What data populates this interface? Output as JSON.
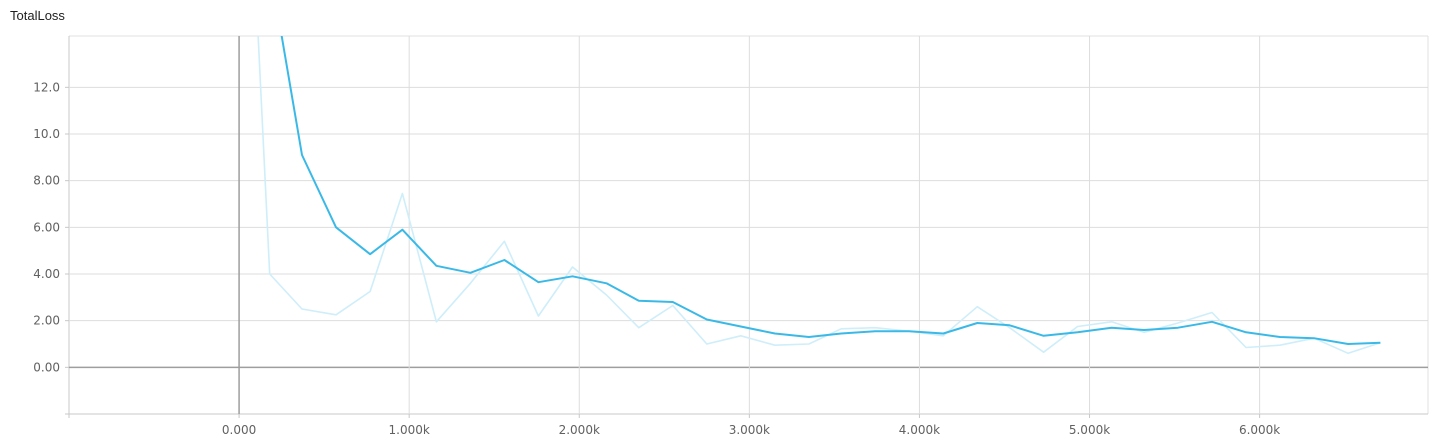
{
  "chart_data": {
    "type": "line",
    "title": "TotalLoss",
    "xlabel": "",
    "ylabel": "",
    "xlim": [
      -1000,
      6990
    ],
    "ylim": [
      -2,
      14.2
    ],
    "x_ticks": [
      0,
      1000,
      2000,
      3000,
      4000,
      5000,
      6000
    ],
    "x_tick_labels": [
      "0.000",
      "1.000k",
      "2.000k",
      "3.000k",
      "4.000k",
      "5.000k",
      "6.000k"
    ],
    "y_ticks": [
      0,
      2,
      4,
      6,
      8,
      10,
      12
    ],
    "y_tick_labels": [
      "0.00",
      "2.00",
      "4.00",
      "6.00",
      "8.00",
      "10.0",
      "12.0"
    ],
    "grid": true,
    "series": [
      {
        "style": "raw",
        "color": "#ceeefa",
        "x": [
          100,
          180,
          370,
          570,
          770,
          960,
          1160,
          1360,
          1560,
          1760,
          1960,
          2160,
          2350,
          2550,
          2750,
          2950,
          3150,
          3350,
          3540,
          3740,
          3940,
          4140,
          4340,
          4530,
          4730,
          4930,
          5130,
          5320,
          5520,
          5720,
          5920,
          6120,
          6320,
          6520,
          6710
        ],
        "y": [
          16,
          4.0,
          2.5,
          2.25,
          3.25,
          7.45,
          1.95,
          3.6,
          5.4,
          2.2,
          4.3,
          3.1,
          1.7,
          2.65,
          1.0,
          1.35,
          0.95,
          1.0,
          1.65,
          1.7,
          1.55,
          1.35,
          2.6,
          1.7,
          0.65,
          1.75,
          1.95,
          1.5,
          1.9,
          2.35,
          0.85,
          0.95,
          1.25,
          0.6,
          1.05
        ]
      },
      {
        "style": "smoothed",
        "color": "#3ab9e7",
        "x": [
          220,
          370,
          570,
          770,
          960,
          1160,
          1360,
          1560,
          1760,
          1960,
          2160,
          2350,
          2550,
          2750,
          2950,
          3150,
          3350,
          3540,
          3740,
          3940,
          4140,
          4340,
          4530,
          4730,
          4930,
          5130,
          5320,
          5520,
          5720,
          5920,
          6120,
          6320,
          6520,
          6710
        ],
        "y": [
          15.5,
          9.1,
          6.0,
          4.85,
          5.9,
          4.35,
          4.05,
          4.6,
          3.65,
          3.9,
          3.6,
          2.85,
          2.8,
          2.05,
          1.75,
          1.45,
          1.3,
          1.45,
          1.55,
          1.55,
          1.45,
          1.9,
          1.8,
          1.35,
          1.5,
          1.7,
          1.6,
          1.7,
          1.95,
          1.5,
          1.3,
          1.25,
          1.0,
          1.05
        ]
      }
    ]
  }
}
